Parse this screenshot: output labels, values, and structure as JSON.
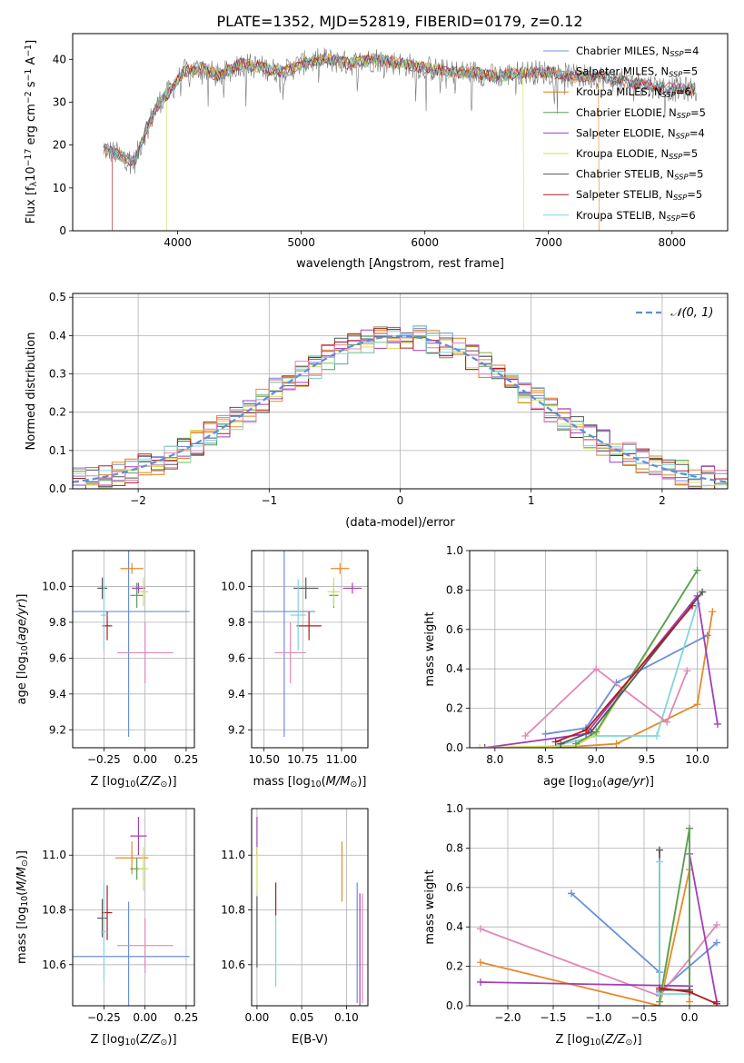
{
  "figure": {
    "title": "PLATE=1352, MJD=52819, FIBERID=0179, z=0.12"
  },
  "colors": {
    "Chabrier MILES": "#6a8fdc",
    "Salpeter MILES": "#e58a2b",
    "Kroupa MILES": "#e07a12",
    "Chabrier ELODIE": "#5a9e5a",
    "Salpeter ELODIE": "#a23fb8",
    "Kroupa ELODIE": "#d2e05a",
    "Chabrier STELIB": "#555555",
    "Salpeter STELIB": "#b31b1b",
    "Kroupa STELIB": "#7fd6dc",
    "pink": "#e088b8",
    "normal": "#5b8fd6"
  },
  "legend_spectrum": [
    {
      "name": "Chabrier MILES, N",
      "sub": "SSP",
      "eq": "=4",
      "color": "#6a8fdc"
    },
    {
      "name": "Salpeter MILES, N",
      "sub": "SSP",
      "eq": "=5",
      "color": "#e58a2b"
    },
    {
      "name": "Kroupa MILES, N",
      "sub": "SSP",
      "eq": "=6",
      "color": "#e07a12"
    },
    {
      "name": "Chabrier ELODIE, N",
      "sub": "SSP",
      "eq": "=5",
      "color": "#5a9e5a"
    },
    {
      "name": "Salpeter ELODIE, N",
      "sub": "SSP",
      "eq": "=4",
      "color": "#a23fb8"
    },
    {
      "name": "Kroupa ELODIE, N",
      "sub": "SSP",
      "eq": "=5",
      "color": "#d2e05a"
    },
    {
      "name": "Chabrier STELIB, N",
      "sub": "SSP",
      "eq": "=5",
      "color": "#555555"
    },
    {
      "name": "Salpeter STELIB, N",
      "sub": "SSP",
      "eq": "=5",
      "color": "#b31b1b"
    },
    {
      "name": "Kroupa STELIB, N",
      "sub": "SSP",
      "eq": "=6",
      "color": "#7fd6dc"
    }
  ],
  "chart_data": [
    {
      "id": "spectrum",
      "type": "line",
      "title": "PLATE=1352, MJD=52819, FIBERID=0179, z=0.12",
      "xlabel": "wavelength [Angstrom, rest frame]",
      "ylabel": "Flux [f",
      "xlim": [
        3150,
        8450
      ],
      "ylim": [
        0,
        46
      ],
      "xticks": [
        4000,
        5000,
        6000,
        7000,
        8000
      ],
      "yticks": [
        0,
        10,
        20,
        30,
        40
      ],
      "grid": false,
      "legend": "top-right",
      "continuum": [
        [
          3400,
          19
        ],
        [
          3500,
          18
        ],
        [
          3650,
          16
        ],
        [
          3750,
          24
        ],
        [
          3850,
          30
        ],
        [
          3950,
          33
        ],
        [
          4050,
          37
        ],
        [
          4200,
          38
        ],
        [
          4340,
          36
        ],
        [
          4500,
          39
        ],
        [
          4700,
          38
        ],
        [
          4861,
          37
        ],
        [
          5000,
          39
        ],
        [
          5200,
          40
        ],
        [
          5400,
          39
        ],
        [
          5600,
          40
        ],
        [
          5800,
          39
        ],
        [
          6000,
          38
        ],
        [
          6200,
          37
        ],
        [
          6400,
          37
        ],
        [
          6563,
          36
        ],
        [
          6800,
          37
        ],
        [
          7000,
          37
        ],
        [
          7200,
          36
        ],
        [
          7400,
          36
        ],
        [
          7600,
          35
        ],
        [
          7800,
          34
        ],
        [
          8000,
          33
        ],
        [
          8200,
          33
        ]
      ],
      "model_edges": [
        {
          "series": "Salpeter STELIB",
          "x": 3470
        },
        {
          "series": "Kroupa ELODIE",
          "x": 3910
        },
        {
          "series": "Kroupa ELODIE",
          "x": 6800
        },
        {
          "series": "Salpeter MILES",
          "x": 7410
        }
      ]
    },
    {
      "id": "residuals",
      "type": "histogram",
      "xlabel": "(data-model)/error",
      "ylabel": "Normed distribution",
      "xlim": [
        -2.5,
        2.5
      ],
      "ylim": [
        0,
        0.51
      ],
      "xticks": [
        -2,
        -1,
        0,
        1,
        2
      ],
      "yticks": [
        0.0,
        0.1,
        0.2,
        0.3,
        0.4,
        0.5
      ],
      "grid": true,
      "legend": "top-right",
      "reference_curve": "normal(0,1)",
      "bin_width": 0.1
    },
    {
      "id": "z_age",
      "type": "errorbar",
      "xlabel": "Z [log",
      "ylabel": "age  [log",
      "xlim": [
        -0.44,
        0.3
      ],
      "ylim": [
        9.1,
        10.2
      ],
      "xticks": [
        -0.25,
        0.0,
        0.25
      ],
      "yticks": [
        9.2,
        9.4,
        9.6,
        9.8,
        10.0
      ],
      "grid": true,
      "points": [
        {
          "series": "Chabrier MILES",
          "x": -0.1,
          "y": 9.86,
          "xerr": 0.37,
          "yerr": 0.7
        },
        {
          "series": "Salpeter MILES",
          "x": -0.08,
          "y": 10.1,
          "xerr": 0.07,
          "yerr": 0.03
        },
        {
          "series": "Chabrier ELODIE",
          "x": -0.05,
          "y": 9.95,
          "xerr": 0.04,
          "yerr": 0.07
        },
        {
          "series": "Salpeter ELODIE",
          "x": -0.04,
          "y": 9.99,
          "xerr": 0.04,
          "yerr": 0.03
        },
        {
          "series": "Kroupa ELODIE",
          "x": -0.01,
          "y": 9.97,
          "xerr": 0.03,
          "yerr": 0.08
        },
        {
          "series": "Chabrier STELIB",
          "x": -0.26,
          "y": 9.99,
          "xerr": 0.03,
          "yerr": 0.06
        },
        {
          "series": "Salpeter STELIB",
          "x": -0.23,
          "y": 9.78,
          "xerr": 0.03,
          "yerr": 0.08
        },
        {
          "series": "Kroupa STELIB",
          "x": -0.25,
          "y": 9.84,
          "xerr": 0.02,
          "yerr": 0.2
        },
        {
          "series": "pink",
          "x": 0.0,
          "y": 9.63,
          "xerr": 0.17,
          "yerr": 0.17
        }
      ]
    },
    {
      "id": "mass_age",
      "type": "errorbar",
      "xlabel": "mass [log",
      "ylabel": "",
      "xlim": [
        10.42,
        11.17
      ],
      "ylim": [
        9.1,
        10.2
      ],
      "xticks": [
        10.5,
        10.75,
        11.0
      ],
      "yticks": [
        9.2,
        9.4,
        9.6,
        9.8,
        10.0
      ],
      "grid": true,
      "points": [
        {
          "series": "Chabrier MILES",
          "x": 10.63,
          "y": 9.86,
          "xerr": 0.2,
          "yerr": 0.7
        },
        {
          "series": "Salpeter MILES",
          "x": 10.99,
          "y": 10.1,
          "xerr": 0.06,
          "yerr": 0.03
        },
        {
          "series": "Chabrier ELODIE",
          "x": 10.95,
          "y": 9.95,
          "xerr": 0.03,
          "yerr": 0.07
        },
        {
          "series": "Salpeter ELODIE",
          "x": 11.07,
          "y": 9.99,
          "xerr": 0.06,
          "yerr": 0.03
        },
        {
          "series": "Kroupa ELODIE",
          "x": 10.95,
          "y": 9.97,
          "xerr": 0.04,
          "yerr": 0.08
        },
        {
          "series": "Chabrier STELIB",
          "x": 10.77,
          "y": 9.99,
          "xerr": 0.08,
          "yerr": 0.06
        },
        {
          "series": "Salpeter STELIB",
          "x": 10.79,
          "y": 9.78,
          "xerr": 0.08,
          "yerr": 0.08
        },
        {
          "series": "Kroupa STELIB",
          "x": 10.72,
          "y": 9.84,
          "xerr": 0.05,
          "yerr": 0.2
        },
        {
          "series": "pink",
          "x": 10.67,
          "y": 9.63,
          "xerr": 0.1,
          "yerr": 0.17
        }
      ]
    },
    {
      "id": "age_weight",
      "type": "line",
      "xlabel": "age  [log",
      "ylabel": "mass weight",
      "xlim": [
        7.75,
        10.3
      ],
      "ylim": [
        0,
        1.0
      ],
      "xticks": [
        8.0,
        8.5,
        9.0,
        9.5,
        10.0
      ],
      "yticks": [
        0.0,
        0.2,
        0.4,
        0.6,
        0.8,
        1.0
      ],
      "grid": true,
      "series": [
        {
          "name": "Chabrier MILES",
          "points": [
            [
              8.5,
              0.07
            ],
            [
              8.9,
              0.1
            ],
            [
              9.2,
              0.33
            ],
            [
              10.1,
              0.57
            ]
          ]
        },
        {
          "name": "Salpeter MILES",
          "points": [
            [
              8.6,
              0.0
            ],
            [
              9.2,
              0.02
            ],
            [
              10.0,
              0.22
            ],
            [
              10.15,
              0.69
            ]
          ]
        },
        {
          "name": "Kroupa STELIB",
          "points": [
            [
              8.6,
              0.01
            ],
            [
              9.0,
              0.06
            ],
            [
              9.6,
              0.06
            ],
            [
              10.0,
              0.73
            ]
          ]
        },
        {
          "name": "Salpeter ELODIE",
          "points": [
            [
              7.9,
              0.0
            ],
            [
              8.9,
              0.07
            ],
            [
              10.0,
              0.77
            ],
            [
              10.2,
              0.12
            ]
          ]
        },
        {
          "name": "Kroupa ELODIE",
          "points": [
            [
              7.85,
              0.0
            ],
            [
              8.8,
              0.01
            ],
            [
              9.0,
              0.07
            ],
            [
              10.0,
              0.9
            ]
          ]
        },
        {
          "name": "Chabrier ELODIE",
          "points": [
            [
              8.8,
              0.02
            ],
            [
              9.0,
              0.08
            ],
            [
              10.0,
              0.9
            ]
          ]
        },
        {
          "name": "pink",
          "points": [
            [
              8.3,
              0.06
            ],
            [
              9.0,
              0.4
            ],
            [
              9.7,
              0.13
            ],
            [
              9.9,
              0.39
            ]
          ]
        },
        {
          "name": "Chabrier STELIB",
          "points": [
            [
              8.65,
              0.02
            ],
            [
              8.95,
              0.08
            ],
            [
              10.05,
              0.79
            ]
          ]
        },
        {
          "name": "Salpeter STELIB",
          "points": [
            [
              8.6,
              0.03
            ],
            [
              8.9,
              0.09
            ],
            [
              9.95,
              0.72
            ]
          ]
        }
      ]
    },
    {
      "id": "z_mass",
      "type": "errorbar",
      "xlabel": "Z [log",
      "ylabel": "mass [log",
      "xlim": [
        -0.44,
        0.3
      ],
      "ylim": [
        10.45,
        11.17
      ],
      "xticks": [
        -0.25,
        0.0,
        0.25
      ],
      "yticks": [
        10.6,
        10.8,
        11.0
      ],
      "grid": true,
      "points": [
        {
          "series": "Chabrier MILES",
          "x": -0.1,
          "y": 10.63,
          "xerr": 0.37,
          "yerr": 0.2
        },
        {
          "series": "Salpeter MILES",
          "x": -0.08,
          "y": 10.99,
          "xerr": 0.1,
          "yerr": 0.06
        },
        {
          "series": "Chabrier ELODIE",
          "x": -0.05,
          "y": 10.95,
          "xerr": 0.04,
          "yerr": 0.04
        },
        {
          "series": "Salpeter ELODIE",
          "x": -0.04,
          "y": 11.07,
          "xerr": 0.05,
          "yerr": 0.07
        },
        {
          "series": "Kroupa ELODIE",
          "x": -0.01,
          "y": 10.95,
          "xerr": 0.03,
          "yerr": 0.08
        },
        {
          "series": "Chabrier STELIB",
          "x": -0.26,
          "y": 10.77,
          "xerr": 0.03,
          "yerr": 0.07
        },
        {
          "series": "Salpeter STELIB",
          "x": -0.23,
          "y": 10.79,
          "xerr": 0.03,
          "yerr": 0.1
        },
        {
          "series": "Kroupa STELIB",
          "x": -0.25,
          "y": 10.72,
          "xerr": 0.02,
          "yerr": 0.18
        },
        {
          "series": "pink",
          "x": 0.0,
          "y": 10.67,
          "xerr": 0.17,
          "yerr": 0.1
        }
      ]
    },
    {
      "id": "ebv_mass",
      "type": "errorbar",
      "xlabel": "E(B-V)",
      "ylabel": "",
      "xlim": [
        -0.006,
        0.124
      ],
      "ylim": [
        10.45,
        11.17
      ],
      "xticks": [
        0.0,
        0.05,
        0.1
      ],
      "yticks": [
        10.6,
        10.8,
        11.0
      ],
      "grid": true,
      "points": [
        {
          "series": "Salpeter ELODIE",
          "x": 0.0,
          "y": 11.07,
          "xerr": 0,
          "yerr": 0.07
        },
        {
          "series": "Kroupa ELODIE",
          "x": 0.0,
          "y": 10.95,
          "xerr": 0,
          "yerr": 0.08
        },
        {
          "series": "Chabrier STELIB",
          "x": 0.0,
          "y": 10.72,
          "xerr": 0,
          "yerr": 0.13
        },
        {
          "series": "Salpeter STELIB",
          "x": 0.021,
          "y": 10.84,
          "xerr": 0,
          "yerr": 0.06
        },
        {
          "series": "Kroupa STELIB",
          "x": 0.021,
          "y": 10.65,
          "xerr": 0,
          "yerr": 0.13
        },
        {
          "series": "Salpeter MILES",
          "x": 0.095,
          "y": 10.94,
          "xerr": 0,
          "yerr": 0.11
        },
        {
          "series": "Chabrier MILES",
          "x": 0.112,
          "y": 10.68,
          "xerr": 0,
          "yerr": 0.22
        },
        {
          "series": "Salpeter ELODIE",
          "x": 0.115,
          "y": 10.64,
          "xerr": 0,
          "yerr": 0.22
        },
        {
          "series": "pink",
          "x": 0.118,
          "y": 10.66,
          "xerr": 0,
          "yerr": 0.2
        }
      ]
    },
    {
      "id": "z_weight",
      "type": "line",
      "xlabel": "Z [log",
      "ylabel": "mass weight",
      "xlim": [
        -2.42,
        0.42
      ],
      "ylim": [
        0,
        1.0
      ],
      "xticks": [
        -2.0,
        -1.5,
        -1.0,
        -0.5,
        0.0
      ],
      "yticks": [
        0.0,
        0.2,
        0.4,
        0.6,
        0.8,
        1.0
      ],
      "grid": true,
      "series": [
        {
          "name": "Chabrier MILES",
          "points": [
            [
              -1.3,
              0.57
            ],
            [
              -0.33,
              0.17
            ],
            [
              -0.33,
              0.07
            ],
            [
              0.3,
              0.32
            ]
          ]
        },
        {
          "name": "pink",
          "points": [
            [
              -2.3,
              0.39
            ],
            [
              -0.33,
              0.05
            ],
            [
              0.3,
              0.41
            ]
          ]
        },
        {
          "name": "Salpeter MILES",
          "points": [
            [
              -2.3,
              0.22
            ],
            [
              -0.33,
              0.0
            ],
            [
              0.0,
              0.69
            ],
            [
              0.0,
              0.02
            ]
          ]
        },
        {
          "name": "Salpeter ELODIE",
          "points": [
            [
              -2.3,
              0.12
            ],
            [
              0.0,
              0.1
            ],
            [
              0.0,
              0.77
            ],
            [
              0.3,
              0.02
            ]
          ]
        },
        {
          "name": "Kroupa ELODIE",
          "points": [
            [
              -0.33,
              0.0
            ],
            [
              0.0,
              0.9
            ],
            [
              0.0,
              0.07
            ]
          ]
        },
        {
          "name": "Chabrier ELODIE",
          "points": [
            [
              -0.33,
              0.02
            ],
            [
              0.0,
              0.9
            ],
            [
              0.0,
              0.08
            ]
          ]
        },
        {
          "name": "Chabrier STELIB",
          "points": [
            [
              -0.33,
              0.79
            ],
            [
              -0.33,
              0.08
            ],
            [
              0.0,
              0.08
            ]
          ]
        },
        {
          "name": "Kroupa STELIB",
          "points": [
            [
              -0.33,
              0.73
            ],
            [
              -0.33,
              0.06
            ],
            [
              0.0,
              0.06
            ]
          ]
        },
        {
          "name": "Salpeter STELIB",
          "points": [
            [
              -0.33,
              0.09
            ],
            [
              0.0,
              0.07
            ],
            [
              0.3,
              0.01
            ]
          ]
        }
      ]
    }
  ]
}
